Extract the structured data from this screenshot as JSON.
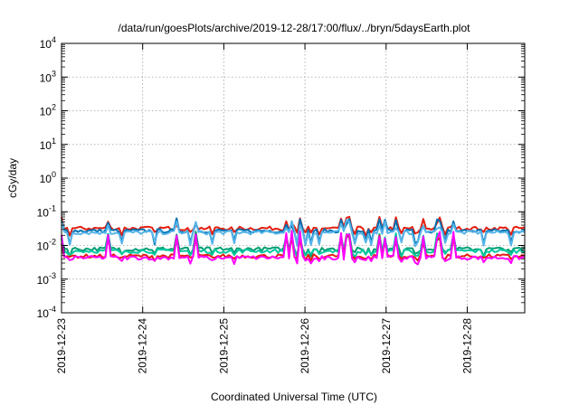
{
  "chart_data": {
    "type": "line",
    "title": "/data/run/goesPlots/archive/2019-12-28/17:00/flux/../bryn/5daysEarth.plot",
    "xlabel": "Coordinated Universal Time (UTC)",
    "ylabel": "cGy/day",
    "xlim": [
      "2019-12-23T00:00",
      "2019-12-28T17:00"
    ],
    "x_ticks": [
      "2019-12-23",
      "2019-12-24",
      "2019-12-25",
      "2019-12-26",
      "2019-12-27",
      "2019-12-28"
    ],
    "y_scale": "log",
    "ylim": [
      0.0001,
      10000
    ],
    "y_ticks": [
      {
        "base": "10",
        "exp": "-4"
      },
      {
        "base": "10",
        "exp": "-3"
      },
      {
        "base": "10",
        "exp": "-2"
      },
      {
        "base": "10",
        "exp": "-1"
      },
      {
        "base": "10",
        "exp": "0"
      },
      {
        "base": "10",
        "exp": "1"
      },
      {
        "base": "10",
        "exp": "2"
      },
      {
        "base": "10",
        "exp": "3"
      },
      {
        "base": "10",
        "exp": "4"
      }
    ],
    "grid": true,
    "legend": "none",
    "series": [
      {
        "color": "#e51e10",
        "baseline": 0.032,
        "spike": 0.055,
        "dip": 0.022
      },
      {
        "color": "#0072b2",
        "baseline": 0.027,
        "spike": 0.05,
        "dip": 0.012
      },
      {
        "color": "#56b4e9",
        "baseline": 0.024,
        "spike": 0.045,
        "dip": 0.011
      },
      {
        "color": "#009e73",
        "baseline": 0.0078,
        "spike": 0.02,
        "dip": 0.0055
      },
      {
        "color": "#00c8a0",
        "baseline": 0.0068,
        "spike": 0.018,
        "dip": 0.005
      },
      {
        "color": "#e51e10",
        "baseline": 0.0048,
        "spike": 0.016,
        "dip": 0.004
      },
      {
        "color": "#ff00ff",
        "baseline": 0.0043,
        "spike": 0.022,
        "dip": 0.0032
      }
    ]
  }
}
